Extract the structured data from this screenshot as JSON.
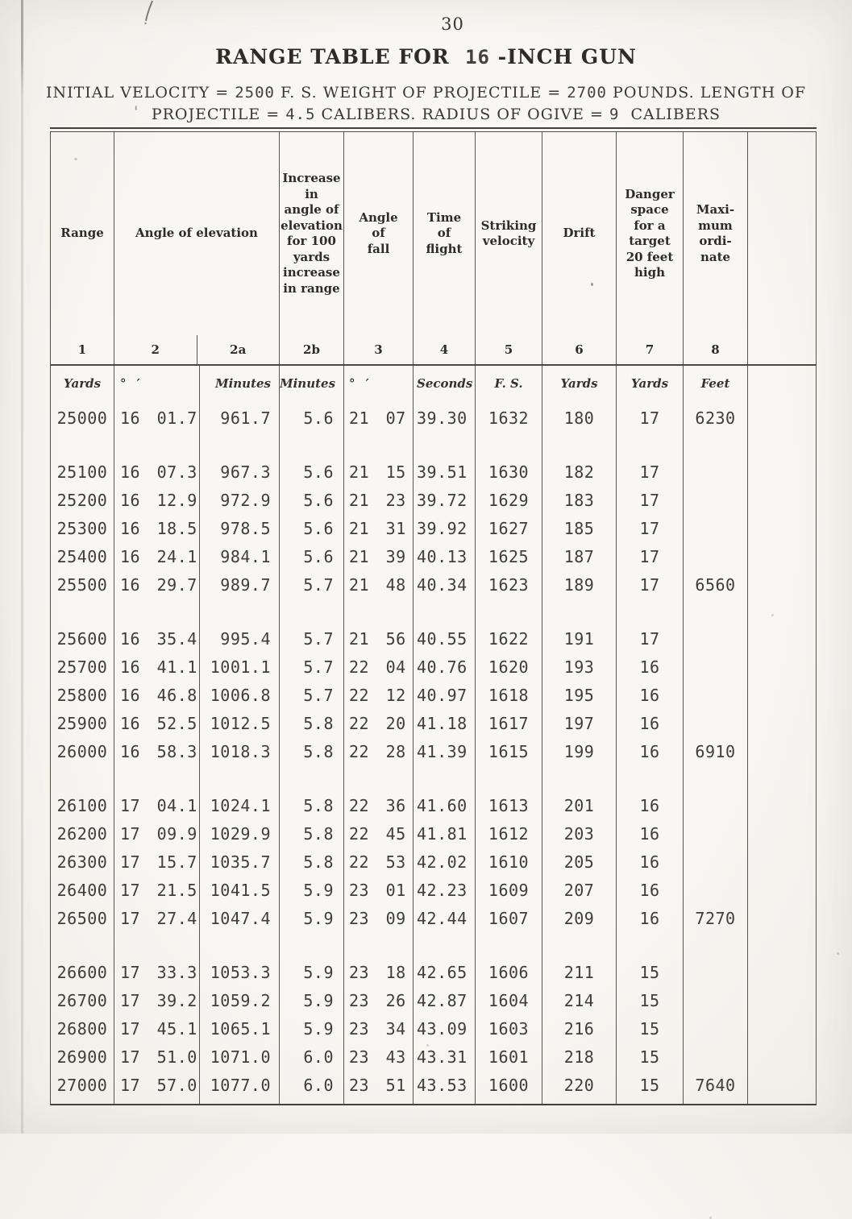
{
  "page_number": "30",
  "title_parts": [
    {
      "text": "RANGE TABLE FOR  ",
      "style": "print"
    },
    {
      "text": "16",
      "style": "typed"
    },
    {
      "text": " -INCH GUN",
      "style": "print"
    }
  ],
  "subtitle_line1": [
    {
      "text": "INITIAL VELOCITY = ",
      "style": "print"
    },
    {
      "text": "2500",
      "style": "typed"
    },
    {
      "text": " F. S. WEIGHT OF PROJECTILE = ",
      "style": "print"
    },
    {
      "text": "2700",
      "style": "typed"
    },
    {
      "text": " POUNDS. LENGTH OF",
      "style": "print"
    }
  ],
  "subtitle_line2": [
    {
      "text": "' ",
      "style": "mark"
    },
    {
      "text": "PROJECTILE = ",
      "style": "print"
    },
    {
      "text": "4.5",
      "style": "typed"
    },
    {
      "text": " CALIBERS. RADIUS OF OGIVE = ",
      "style": "print"
    },
    {
      "text": "9",
      "style": "typed"
    },
    {
      "text": "  CALIBERS",
      "style": "print"
    }
  ],
  "table": {
    "header": [
      {
        "id": "range",
        "lines": [
          "Range"
        ],
        "number": "1",
        "span": 1
      },
      {
        "id": "angle-of-elevation",
        "lines": [
          "Angle of elevation"
        ],
        "number": "2",
        "number2": "2a",
        "span": 2
      },
      {
        "id": "increase-in-angle-of-elevation",
        "lines": [
          "Increase",
          "in",
          "angle of",
          "elevation",
          "for 100",
          "yards",
          "increase",
          "in range"
        ],
        "number": "2b",
        "span": 1
      },
      {
        "id": "angle-of-fall",
        "lines": [
          "Angle",
          "of",
          "fall"
        ],
        "number": "3",
        "span": 1
      },
      {
        "id": "time-of-flight",
        "lines": [
          "Time",
          "of",
          "flight"
        ],
        "number": "4",
        "span": 1
      },
      {
        "id": "striking-velocity",
        "lines": [
          "Striking",
          "velocity"
        ],
        "number": "5",
        "span": 1
      },
      {
        "id": "drift",
        "lines": [
          "Drift"
        ],
        "number": "6",
        "span": 1
      },
      {
        "id": "danger-space",
        "lines": [
          "Danger",
          "space",
          "for a",
          "target",
          "20 feet",
          "high"
        ],
        "number": "7",
        "span": 1
      },
      {
        "id": "maximum-ordinate",
        "lines": [
          "Maxi-",
          "mum",
          "ordi-",
          "nate"
        ],
        "number": "8",
        "span": 1
      },
      {
        "id": "blank",
        "lines": [],
        "number": "",
        "span": 1
      }
    ],
    "units": [
      "Yards",
      "° ′",
      "Minutes",
      "Minutes",
      "° ′",
      "Seconds",
      "F. S.",
      "Yards",
      "Yards",
      "Feet",
      ""
    ],
    "blocks": [
      [
        [
          "25000",
          "16 01.7",
          "961.7",
          "5.6",
          "21 07",
          "39.30",
          "1632",
          "180",
          "17",
          "6230",
          ""
        ]
      ],
      [
        [
          "25100",
          "16 07.3",
          "967.3",
          "5.6",
          "21 15",
          "39.51",
          "1630",
          "182",
          "17",
          "",
          ""
        ],
        [
          "25200",
          "16 12.9",
          "972.9",
          "5.6",
          "21 23",
          "39.72",
          "1629",
          "183",
          "17",
          "",
          ""
        ],
        [
          "25300",
          "16 18.5",
          "978.5",
          "5.6",
          "21 31",
          "39.92",
          "1627",
          "185",
          "17",
          "",
          ""
        ],
        [
          "25400",
          "16 24.1",
          "984.1",
          "5.6",
          "21 39",
          "40.13",
          "1625",
          "187",
          "17",
          "",
          ""
        ],
        [
          "25500",
          "16 29.7",
          "989.7",
          "5.7",
          "21 48",
          "40.34",
          "1623",
          "189",
          "17",
          "6560",
          ""
        ]
      ],
      [
        [
          "25600",
          "16 35.4",
          "995.4",
          "5.7",
          "21 56",
          "40.55",
          "1622",
          "191",
          "17",
          "",
          ""
        ],
        [
          "25700",
          "16 41.1",
          "1001.1",
          "5.7",
          "22 04",
          "40.76",
          "1620",
          "193",
          "16",
          "",
          ""
        ],
        [
          "25800",
          "16 46.8",
          "1006.8",
          "5.7",
          "22 12",
          "40.97",
          "1618",
          "195",
          "16",
          "",
          ""
        ],
        [
          "25900",
          "16 52.5",
          "1012.5",
          "5.8",
          "22 20",
          "41.18",
          "1617",
          "197",
          "16",
          "",
          ""
        ],
        [
          "26000",
          "16 58.3",
          "1018.3",
          "5.8",
          "22 28",
          "41.39",
          "1615",
          "199",
          "16",
          "6910",
          ""
        ]
      ],
      [
        [
          "26100",
          "17 04.1",
          "1024.1",
          "5.8",
          "22 36",
          "41.60",
          "1613",
          "201",
          "16",
          "",
          ""
        ],
        [
          "26200",
          "17 09.9",
          "1029.9",
          "5.8",
          "22 45",
          "41.81",
          "1612",
          "203",
          "16",
          "",
          ""
        ],
        [
          "26300",
          "17 15.7",
          "1035.7",
          "5.8",
          "22 53",
          "42.02",
          "1610",
          "205",
          "16",
          "",
          ""
        ],
        [
          "26400",
          "17 21.5",
          "1041.5",
          "5.9",
          "23 01",
          "42.23",
          "1609",
          "207",
          "16",
          "",
          ""
        ],
        [
          "26500",
          "17 27.4",
          "1047.4",
          "5.9",
          "23 09",
          "42.44",
          "1607",
          "209",
          "16",
          "7270",
          ""
        ]
      ],
      [
        [
          "26600",
          "17 33.3",
          "1053.3",
          "5.9",
          "23 18",
          "42.65",
          "1606",
          "211",
          "15",
          "",
          ""
        ],
        [
          "26700",
          "17 39.2",
          "1059.2",
          "5.9",
          "23 26",
          "42.87",
          "1604",
          "214",
          "15",
          "",
          ""
        ],
        [
          "26800",
          "17 45.1",
          "1065.1",
          "5.9",
          "23 34",
          "43.09",
          "1603",
          "216",
          "15",
          "",
          ""
        ],
        [
          "26900",
          "17 51.0",
          "1071.0",
          "6.0",
          "23 43",
          "43.31",
          "1601",
          "218",
          "15",
          "",
          ""
        ],
        [
          "27000",
          "17 57.0",
          "1077.0",
          "6.0",
          "23 51",
          "43.53",
          "1600",
          "220",
          "15",
          "7640",
          ""
        ]
      ]
    ]
  }
}
